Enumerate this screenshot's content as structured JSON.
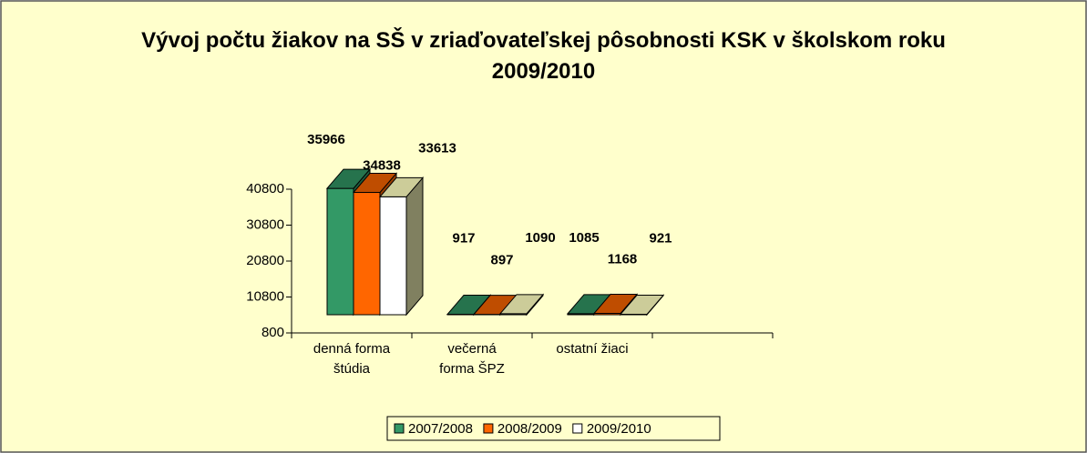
{
  "chart_data": {
    "type": "bar3d",
    "title": "Vývoj počtu žiakov na SŠ v zriaďovateľskej pôsobnosti KSK v školskom roku 2009/2010",
    "categories": [
      "denná forma štúdia",
      "večerná forma ŠPZ",
      "ostatní žiaci"
    ],
    "series": [
      {
        "name": "2007/2008",
        "color": "#339966",
        "values": [
          35966,
          917,
          1085
        ]
      },
      {
        "name": "2008/2009",
        "color": "#ff6600",
        "values": [
          34838,
          897,
          1168
        ]
      },
      {
        "name": "2009/2010",
        "color": "#ffffff",
        "values": [
          33613,
          1090,
          921
        ]
      }
    ],
    "ylim": [
      800,
      40800
    ],
    "yticks": [
      800,
      10800,
      20800,
      30800,
      40800
    ],
    "legend": "bottom"
  }
}
